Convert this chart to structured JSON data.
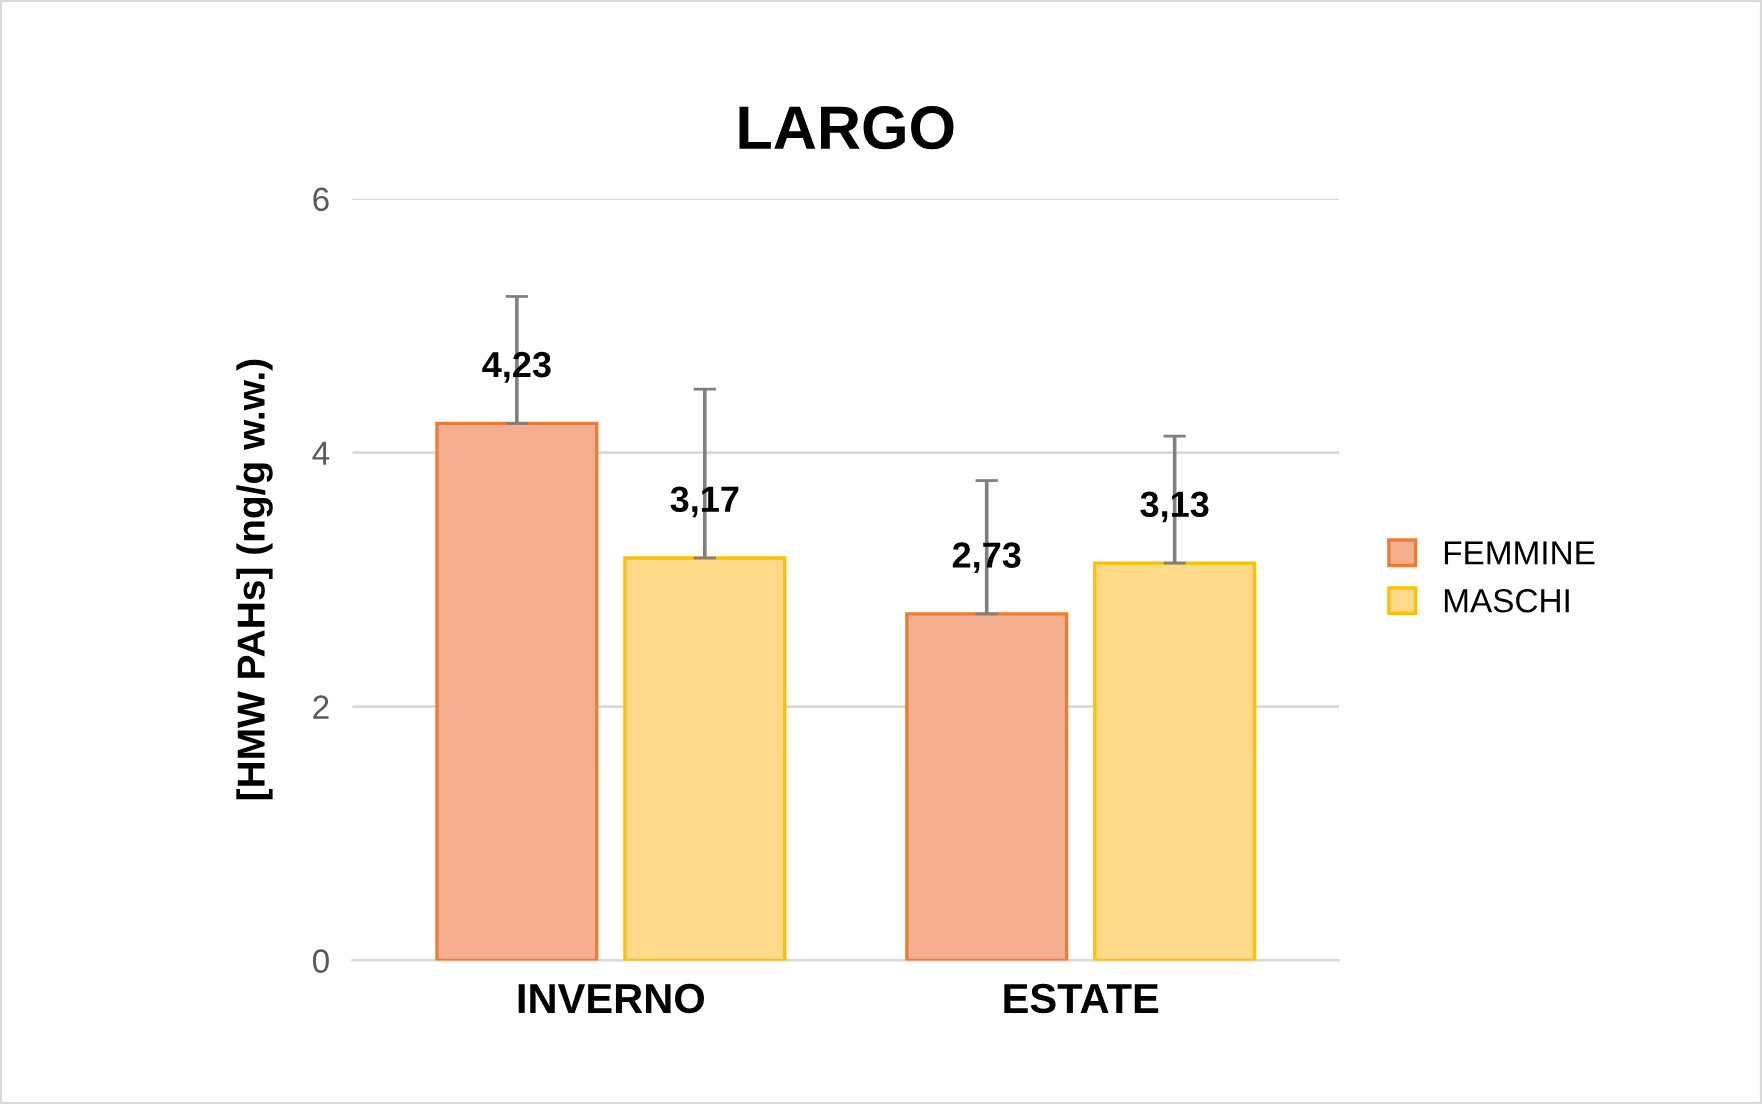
{
  "chart_data": {
    "type": "bar",
    "title": "LARGO",
    "ylabel": "[HMW PAHs] (ng/g w.w.)",
    "categories": [
      "INVERNO",
      "ESTATE"
    ],
    "series": [
      {
        "name": "FEMMINE",
        "color": "#f5ae90",
        "values": [
          4.23,
          2.73
        ],
        "errors": [
          [
            4.23,
            5.23
          ],
          [
            2.73,
            3.78
          ]
        ],
        "value_labels": [
          "4,23",
          "2,73"
        ]
      },
      {
        "name": "MASCHI",
        "color": "#ffd98a",
        "values": [
          3.17,
          3.13
        ],
        "errors": [
          [
            3.17,
            4.5
          ],
          [
            3.13,
            4.13
          ]
        ],
        "value_labels": [
          "3,17",
          "3,13"
        ]
      }
    ],
    "ylim": [
      0,
      6
    ],
    "yticks": [
      0,
      2,
      4,
      6
    ],
    "grid": "y",
    "legend": "right"
  }
}
